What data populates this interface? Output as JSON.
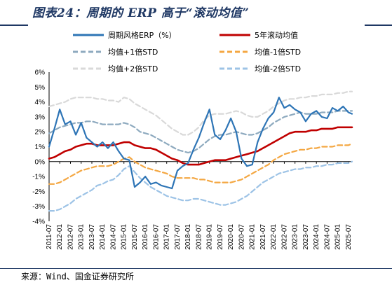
{
  "header": {
    "title": "图表24：周期的 ERP 高于“滚动均值”",
    "title_color": "#1f3864"
  },
  "footer": {
    "source": "来源：Wind、国金证券研究所"
  },
  "chart_data": {
    "type": "line",
    "title": "",
    "xlabel": "",
    "ylabel": "",
    "ylim": [
      -4,
      6
    ],
    "yticks": [
      "6%",
      "5%",
      "4%",
      "3%",
      "2%",
      "1%",
      "0%",
      "-1%",
      "-2%",
      "-3%",
      "-4%"
    ],
    "grid": false,
    "legend_position": "top",
    "x_ticks": [
      "2011-07",
      "2012-01",
      "2012-07",
      "2013-01",
      "2013-07",
      "2014-01",
      "2014-07",
      "2015-01",
      "2015-07",
      "2016-01",
      "2016-07",
      "2017-01",
      "2017-07",
      "2018-01",
      "2018-07",
      "2019-01",
      "2019-07",
      "2020-01",
      "2020-07",
      "2021-01",
      "2021-07",
      "2022-01",
      "2022-07",
      "2023-01",
      "2023-07",
      "2024-01",
      "2024-07",
      "2025-01",
      "2025-07"
    ],
    "x_dates": [
      "2011-07",
      "2011-10",
      "2012-01",
      "2012-04",
      "2012-07",
      "2012-10",
      "2013-01",
      "2013-04",
      "2013-07",
      "2013-10",
      "2014-01",
      "2014-04",
      "2014-07",
      "2014-10",
      "2015-01",
      "2015-04",
      "2015-07",
      "2015-10",
      "2016-01",
      "2016-04",
      "2016-07",
      "2016-10",
      "2017-01",
      "2017-04",
      "2017-07",
      "2017-10",
      "2018-01",
      "2018-04",
      "2018-07",
      "2018-10",
      "2019-01",
      "2019-04",
      "2019-07",
      "2019-10",
      "2020-01",
      "2020-04",
      "2020-07",
      "2020-10",
      "2021-01",
      "2021-04",
      "2021-07",
      "2021-10",
      "2022-01",
      "2022-04",
      "2022-07",
      "2022-10",
      "2023-01",
      "2023-04",
      "2023-07",
      "2023-10",
      "2024-01",
      "2024-04",
      "2024-07",
      "2024-10",
      "2025-01",
      "2025-04",
      "2025-07",
      "2025-09"
    ],
    "series": [
      {
        "name": "周期风格ERP（%）",
        "color": "#2e75b6",
        "style": "solid",
        "values": [
          1.0,
          2.2,
          3.5,
          2.5,
          2.7,
          1.8,
          2.6,
          1.6,
          1.3,
          1.0,
          1.3,
          0.9,
          1.3,
          0.7,
          0.2,
          0.1,
          -1.7,
          -1.4,
          -1.0,
          -1.5,
          -1.4,
          -1.6,
          -1.7,
          -1.8,
          -0.6,
          -0.3,
          -0.1,
          0.8,
          1.6,
          2.6,
          3.5,
          1.8,
          1.5,
          2.1,
          2.9,
          2.0,
          0.2,
          -0.3,
          -0.2,
          1.3,
          2.2,
          2.9,
          3.3,
          4.3,
          3.6,
          3.8,
          3.5,
          3.3,
          2.7,
          3.2,
          3.4,
          3.0,
          2.9,
          3.6,
          3.4,
          3.7,
          3.3,
          3.2
        ]
      },
      {
        "name": "5年滚动均值",
        "color": "#c00000",
        "style": "solid",
        "values": [
          0.2,
          0.3,
          0.5,
          0.7,
          0.8,
          1.0,
          1.1,
          1.2,
          1.2,
          1.1,
          1.1,
          1.1,
          1.1,
          1.2,
          1.3,
          1.3,
          1.1,
          1.0,
          0.9,
          0.9,
          0.8,
          0.6,
          0.4,
          0.2,
          0.1,
          -0.1,
          -0.2,
          -0.2,
          -0.2,
          -0.1,
          0.0,
          0.1,
          0.1,
          0.1,
          0.2,
          0.3,
          0.4,
          0.5,
          0.6,
          0.7,
          0.9,
          1.1,
          1.3,
          1.5,
          1.7,
          1.9,
          2.0,
          2.0,
          2.0,
          2.1,
          2.1,
          2.2,
          2.2,
          2.2,
          2.3,
          2.3,
          2.3,
          2.3
        ]
      },
      {
        "name": "均值+1倍STD",
        "color": "#8eaabf",
        "style": "dashed",
        "values": [
          1.9,
          2.1,
          2.3,
          2.4,
          2.5,
          2.6,
          2.6,
          2.7,
          2.7,
          2.6,
          2.5,
          2.5,
          2.5,
          2.5,
          2.6,
          2.5,
          2.3,
          2.0,
          1.9,
          1.8,
          1.6,
          1.4,
          1.2,
          1.0,
          0.8,
          0.7,
          0.6,
          0.7,
          0.9,
          1.2,
          1.5,
          1.7,
          1.8,
          1.8,
          1.9,
          2.0,
          1.9,
          1.8,
          1.8,
          1.9,
          2.1,
          2.3,
          2.6,
          2.8,
          3.0,
          3.1,
          3.2,
          3.3,
          3.2,
          3.2,
          3.2,
          3.3,
          3.3,
          3.3,
          3.4,
          3.4,
          3.4,
          3.4
        ]
      },
      {
        "name": "均值-1倍STD",
        "color": "#f4a742",
        "style": "dashed",
        "values": [
          -1.5,
          -1.5,
          -1.4,
          -1.2,
          -1.0,
          -0.8,
          -0.6,
          -0.5,
          -0.4,
          -0.3,
          -0.3,
          -0.3,
          -0.2,
          0.0,
          0.2,
          0.3,
          0.0,
          -0.2,
          -0.4,
          -0.5,
          -0.6,
          -0.7,
          -0.8,
          -1.0,
          -1.1,
          -1.1,
          -1.1,
          -1.1,
          -1.2,
          -1.2,
          -1.3,
          -1.4,
          -1.4,
          -1.4,
          -1.4,
          -1.3,
          -1.2,
          -1.0,
          -0.8,
          -0.6,
          -0.4,
          -0.2,
          0.1,
          0.3,
          0.5,
          0.6,
          0.7,
          0.8,
          0.8,
          0.9,
          0.9,
          1.0,
          1.0,
          1.0,
          1.1,
          1.1,
          1.1,
          1.2
        ]
      },
      {
        "name": "均值+2倍STD",
        "color": "#d9d9d9",
        "style": "dashed",
        "values": [
          3.7,
          3.8,
          3.9,
          4.0,
          4.2,
          4.3,
          4.3,
          4.3,
          4.3,
          4.2,
          4.2,
          4.1,
          4.1,
          4.0,
          4.3,
          4.2,
          3.9,
          3.7,
          3.5,
          3.3,
          3.1,
          2.8,
          2.5,
          2.2,
          2.0,
          1.8,
          1.8,
          2.0,
          2.3,
          2.8,
          3.1,
          3.2,
          3.2,
          3.2,
          3.3,
          3.4,
          3.3,
          3.1,
          3.0,
          3.0,
          3.2,
          3.4,
          3.7,
          3.9,
          4.1,
          4.2,
          4.2,
          4.3,
          4.3,
          4.4,
          4.4,
          4.5,
          4.5,
          4.5,
          4.6,
          4.6,
          4.7,
          4.7
        ]
      },
      {
        "name": "均值-2倍STD",
        "color": "#9dc3e6",
        "style": "dashed",
        "values": [
          -3.3,
          -3.3,
          -3.2,
          -3.0,
          -2.8,
          -2.5,
          -2.3,
          -2.1,
          -1.9,
          -1.6,
          -1.5,
          -1.3,
          -1.2,
          -0.9,
          -0.5,
          -0.3,
          -0.7,
          -1.1,
          -1.4,
          -1.7,
          -1.9,
          -2.1,
          -2.3,
          -2.4,
          -2.5,
          -2.6,
          -2.6,
          -2.5,
          -2.5,
          -2.6,
          -2.7,
          -2.8,
          -2.9,
          -2.9,
          -2.8,
          -2.7,
          -2.5,
          -2.3,
          -2.0,
          -1.7,
          -1.4,
          -1.2,
          -1.0,
          -0.8,
          -0.7,
          -0.6,
          -0.5,
          -0.5,
          -0.4,
          -0.4,
          -0.3,
          -0.3,
          -0.2,
          -0.2,
          -0.1,
          -0.1,
          -0.1,
          0.0
        ]
      }
    ]
  }
}
